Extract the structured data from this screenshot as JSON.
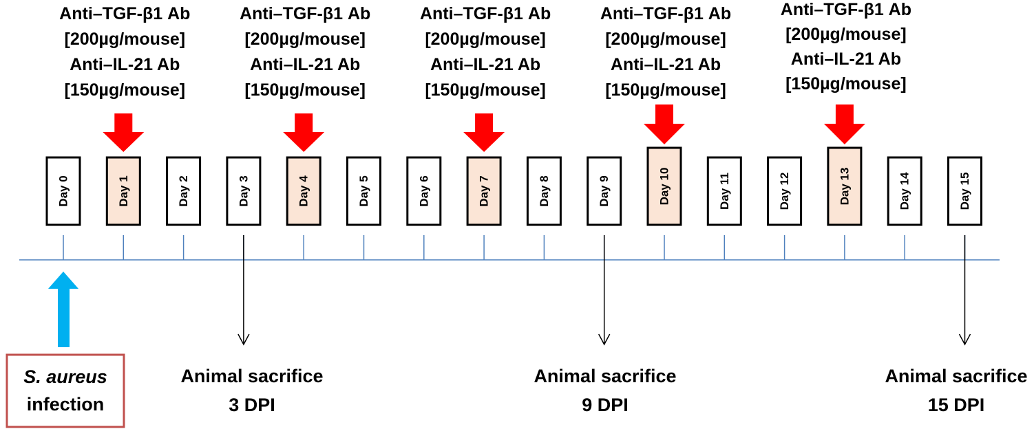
{
  "treatment": {
    "line1": "Anti–TGF-β1 Ab",
    "line2": "[200µg/mouse]",
    "line3": "Anti–IL-21 Ab",
    "line4": "[150µg/mouse]"
  },
  "treatment_days": [
    "Day 1",
    "Day 4",
    "Day 7",
    "Day 10",
    "Day 13"
  ],
  "days": [
    "Day 0",
    "Day 1",
    "Day 2",
    "Day 3",
    "Day 4",
    "Day 5",
    "Day 6",
    "Day 7",
    "Day 8",
    "Day 9",
    "Day 10",
    "Day 11",
    "Day 12",
    "Day 13",
    "Day 14",
    "Day 15"
  ],
  "infection": {
    "species": "S. aureus",
    "word": "infection"
  },
  "sacrifice": [
    {
      "day": "Day 3",
      "label": "Animal sacrifice",
      "dpi": "3 DPI"
    },
    {
      "day": "Day 9",
      "label": "Animal sacrifice",
      "dpi": "9 DPI"
    },
    {
      "day": "Day 15",
      "label": "Animal sacrifice",
      "dpi": "15 DPI"
    }
  ],
  "colors": {
    "treatment_box_fill": "#fbe5d6",
    "treatment_arrow": "#ff0000",
    "infection_arrow": "#00b0f0",
    "infection_border": "#c0504d",
    "timeline": "#4f81bd"
  }
}
